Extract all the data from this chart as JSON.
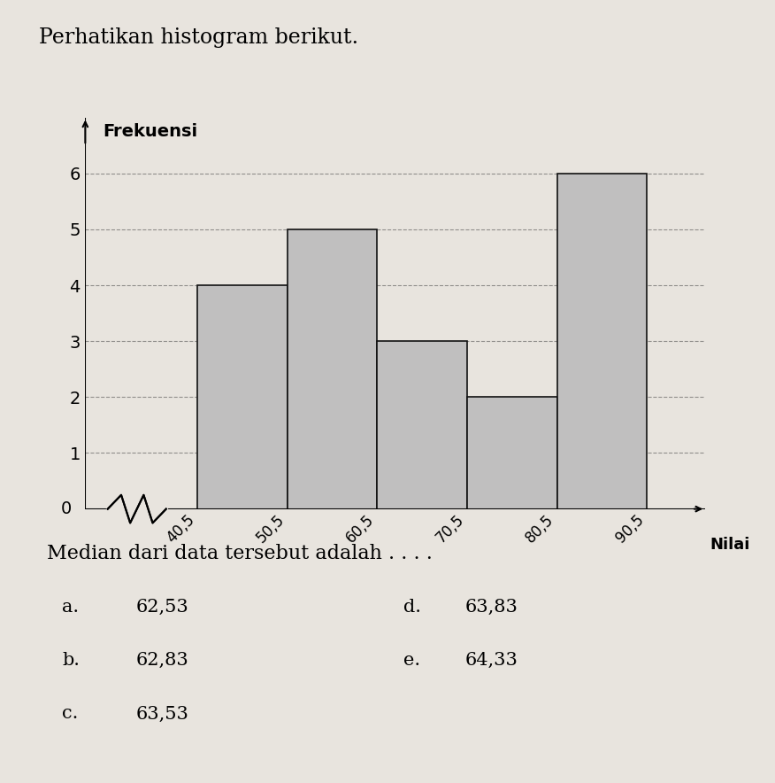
{
  "title": "Perhatikan histogram berikut.",
  "ylabel": "Frekuensi",
  "xlabel": "Nilai",
  "bar_edges": [
    40.5,
    50.5,
    60.5,
    70.5,
    80.5,
    90.5
  ],
  "bar_heights": [
    4,
    5,
    3,
    2,
    6
  ],
  "bar_color": "#c0bfbf",
  "bar_edgecolor": "#111111",
  "yticks": [
    0,
    1,
    2,
    3,
    4,
    5,
    6
  ],
  "xtick_labels": [
    "40,5",
    "50,5",
    "60,5",
    "70,5",
    "80,5",
    "90,5"
  ],
  "xtick_positions": [
    40.5,
    50.5,
    60.5,
    70.5,
    80.5,
    90.5
  ],
  "ylim": [
    0,
    7.0
  ],
  "xlim": [
    28,
    97
  ],
  "grid_color": "#555555",
  "background_color": "#e8e4de",
  "question_text": "Median dari data tersebut adalah . . . .",
  "options": [
    [
      "a.",
      "62,53",
      "d.",
      "63,83"
    ],
    [
      "b.",
      "62,83",
      "e.",
      "64,33"
    ],
    [
      "c.",
      "63,53",
      "",
      ""
    ]
  ]
}
